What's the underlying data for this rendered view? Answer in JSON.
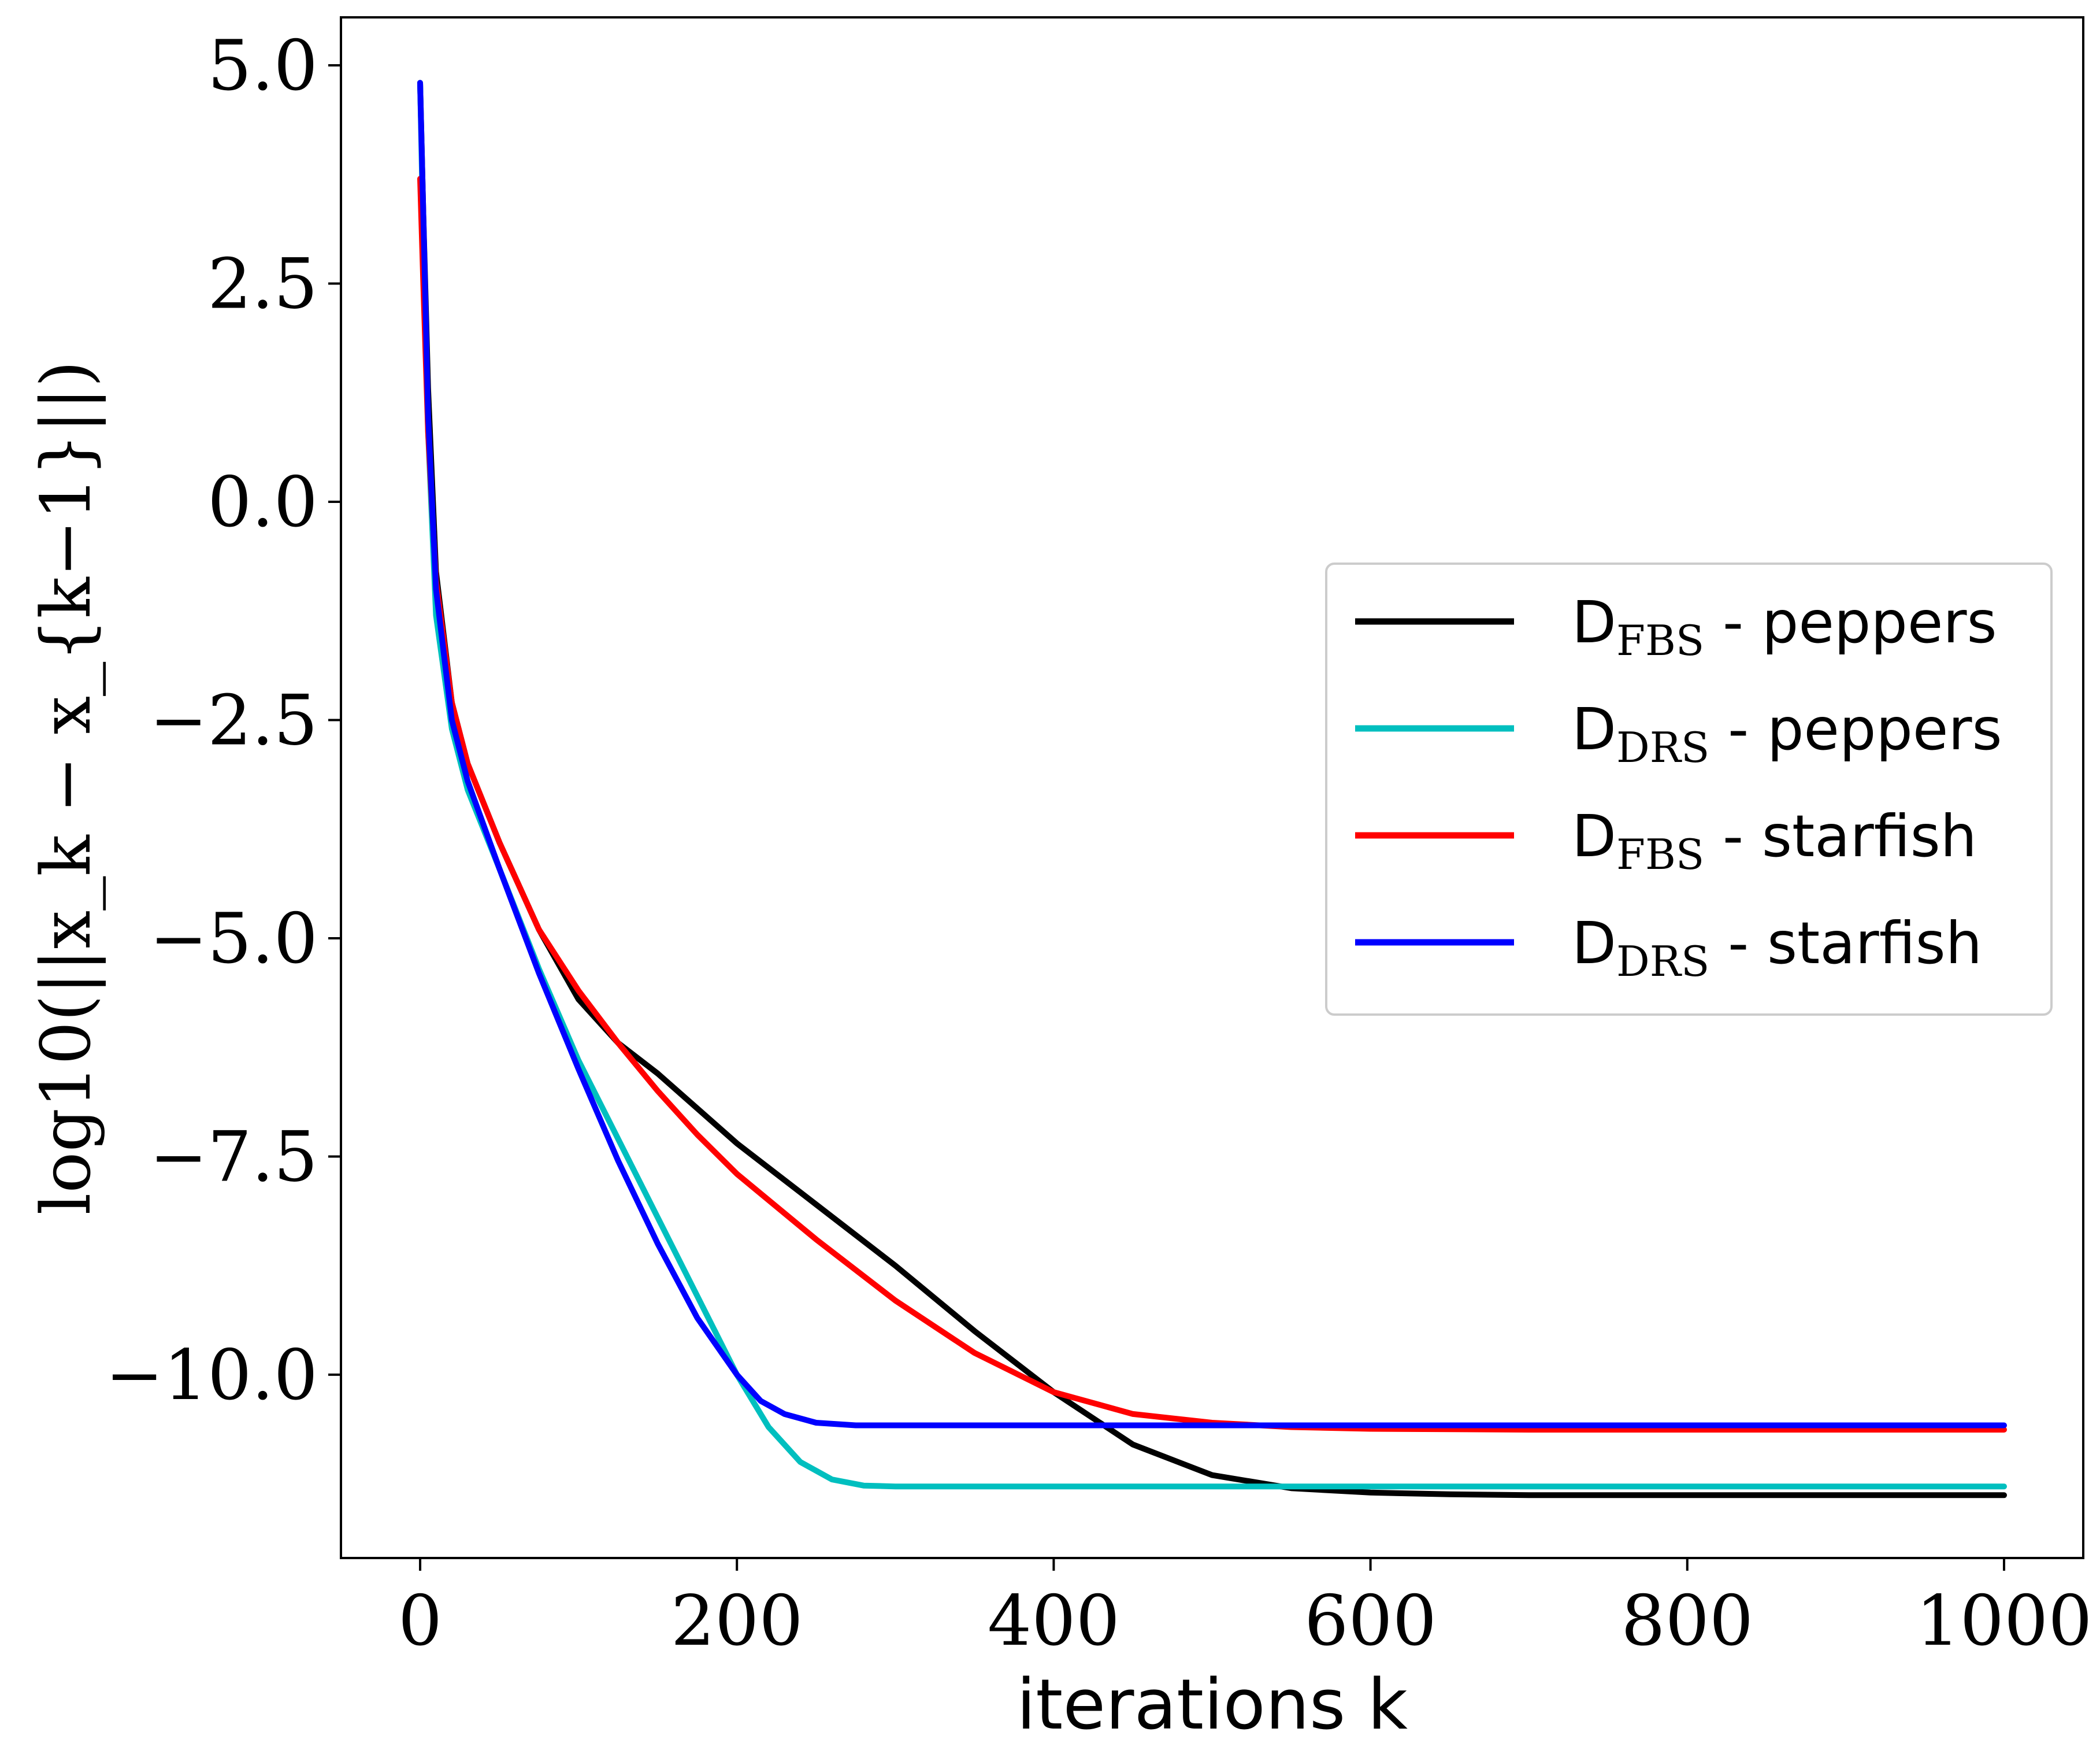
{
  "chart_data": {
    "type": "line",
    "title": "",
    "xlabel": "iterations k",
    "ylabel": "log10(||x_k − x_{k−1}||)",
    "xlim": [
      -50,
      1050
    ],
    "ylim": [
      -12.1,
      5.55
    ],
    "xticks": [
      0,
      200,
      400,
      600,
      800,
      1000
    ],
    "xtick_labels": [
      "0",
      "200",
      "400",
      "600",
      "800",
      "1000"
    ],
    "yticks": [
      5.0,
      2.5,
      0.0,
      -2.5,
      -5.0,
      -7.5,
      -10.0
    ],
    "ytick_labels": [
      "5.0",
      "2.5",
      "0.0",
      "−2.5",
      "−5.0",
      "−7.5",
      "−10.0"
    ],
    "grid": false,
    "legend_position": "center-right",
    "series": [
      {
        "name": "D_FBS - peppers",
        "label_main": "D",
        "label_sub": "FBS",
        "label_rest": " - peppers",
        "color": "#000000",
        "x": [
          0,
          2,
          5,
          10,
          20,
          30,
          50,
          75,
          100,
          125,
          150,
          175,
          200,
          250,
          300,
          350,
          400,
          450,
          500,
          550,
          600,
          650,
          700,
          800,
          900,
          1000
        ],
        "y": [
          4.8,
          3.3,
          1.3,
          -0.8,
          -2.3,
          -3.0,
          -3.9,
          -4.9,
          -5.7,
          -6.2,
          -6.55,
          -6.95,
          -7.35,
          -8.05,
          -8.75,
          -9.5,
          -10.2,
          -10.8,
          -11.15,
          -11.3,
          -11.35,
          -11.37,
          -11.38,
          -11.38,
          -11.38,
          -11.38
        ]
      },
      {
        "name": "D_DRS - peppers",
        "label_main": "D",
        "label_sub": "DRS",
        "label_rest": " - peppers",
        "color": "#00bfbf",
        "x": [
          0,
          2,
          5,
          10,
          20,
          30,
          50,
          75,
          100,
          125,
          150,
          175,
          200,
          220,
          240,
          260,
          280,
          300,
          400,
          500,
          600,
          700,
          800,
          900,
          1000
        ],
        "y": [
          4.8,
          3.0,
          0.8,
          -1.3,
          -2.6,
          -3.3,
          -4.2,
          -5.35,
          -6.4,
          -7.3,
          -8.2,
          -9.1,
          -10.0,
          -10.6,
          -11.0,
          -11.2,
          -11.27,
          -11.28,
          -11.28,
          -11.28,
          -11.28,
          -11.28,
          -11.28,
          -11.28,
          -11.28
        ]
      },
      {
        "name": "D_FBS - starfish",
        "label_main": "D",
        "label_sub": "FBS",
        "label_rest": " - starfish",
        "color": "#ff0000",
        "x": [
          0,
          2,
          5,
          10,
          20,
          30,
          50,
          75,
          100,
          125,
          150,
          175,
          200,
          250,
          300,
          350,
          400,
          450,
          500,
          550,
          600,
          700,
          800,
          900,
          1000
        ],
        "y": [
          3.7,
          2.5,
          0.8,
          -0.9,
          -2.3,
          -3.0,
          -3.9,
          -4.9,
          -5.6,
          -6.2,
          -6.75,
          -7.25,
          -7.7,
          -8.45,
          -9.15,
          -9.75,
          -10.2,
          -10.45,
          -10.55,
          -10.6,
          -10.62,
          -10.63,
          -10.63,
          -10.63,
          -10.63
        ]
      },
      {
        "name": "D_DRS - starfish",
        "label_main": "D",
        "label_sub": "DRS",
        "label_rest": " - starfish",
        "color": "#0000ff",
        "x": [
          0,
          2,
          5,
          10,
          20,
          30,
          50,
          75,
          100,
          125,
          150,
          175,
          200,
          215,
          230,
          250,
          275,
          300,
          400,
          500,
          600,
          700,
          800,
          900,
          1000
        ],
        "y": [
          4.8,
          3.3,
          1.0,
          -1.0,
          -2.5,
          -3.2,
          -4.2,
          -5.4,
          -6.5,
          -7.55,
          -8.5,
          -9.35,
          -10.0,
          -10.3,
          -10.45,
          -10.55,
          -10.58,
          -10.58,
          -10.58,
          -10.58,
          -10.58,
          -10.58,
          -10.58,
          -10.58,
          -10.58
        ]
      }
    ]
  }
}
